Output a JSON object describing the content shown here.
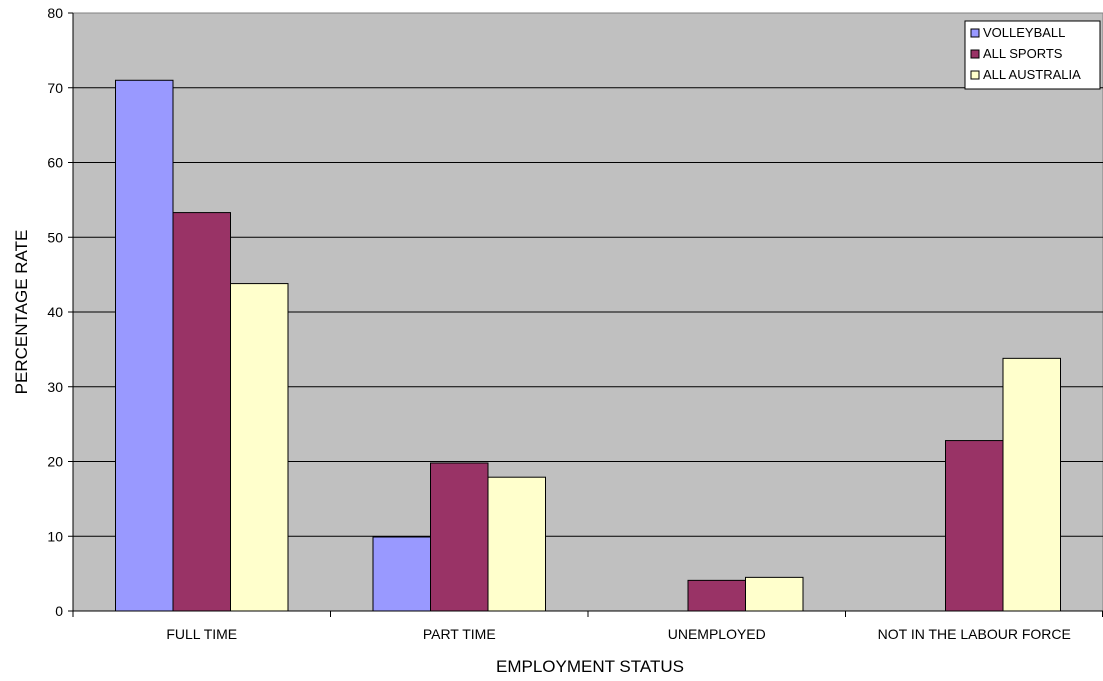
{
  "chart_data": {
    "type": "bar",
    "title": "",
    "xlabel": "EMPLOYMENT STATUS",
    "ylabel": "PERCENTAGE RATE",
    "categories": [
      "FULL TIME",
      "PART TIME",
      "UNEMPLOYED",
      "NOT IN THE LABOUR FORCE"
    ],
    "ylim": [
      0,
      80
    ],
    "yticks": [
      "0",
      "10",
      "20",
      "30",
      "40",
      "50",
      "60",
      "70",
      "80"
    ],
    "grid": true,
    "legend_position": "top-right",
    "plot_background": "#c0c0c0",
    "series": [
      {
        "name": "VOLLEYBALL",
        "color": "#9999ff",
        "values": [
          71,
          9.9,
          0,
          0
        ]
      },
      {
        "name": "ALL SPORTS",
        "color": "#993366",
        "values": [
          53.3,
          19.8,
          4.1,
          22.8
        ]
      },
      {
        "name": "ALL AUSTRALIA",
        "color": "#ffffcc",
        "values": [
          43.8,
          17.9,
          4.5,
          33.8
        ]
      }
    ]
  }
}
